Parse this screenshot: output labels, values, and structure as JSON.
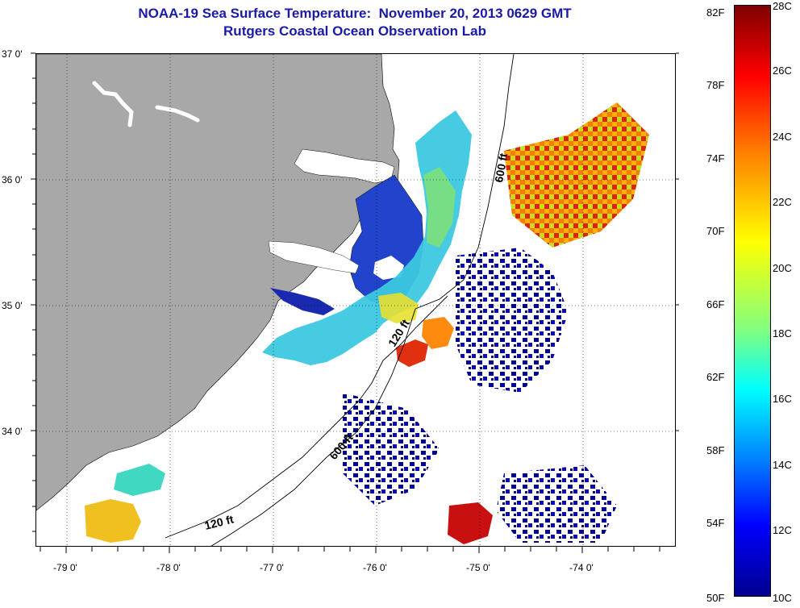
{
  "title": {
    "line1": "NOAA-19 Sea Surface Temperature:  November 20, 2013 0629 GMT",
    "line2": "Rutgers Coastal Ocean Observation Lab"
  },
  "map": {
    "lat_axis_labels": [
      "37 0'",
      "36 0'",
      "35 0'",
      "34 0'"
    ],
    "lon_axis_labels": [
      "-79 0'",
      "-78 0'",
      "-77 0'",
      "-76 0'",
      "-75 0'",
      "-74 0'"
    ],
    "contour_labels": {
      "c600_north": "600 ft",
      "c120_mid": "120 ft",
      "c600_south": "600 ft",
      "c120_south": "120 ft"
    },
    "colors": {
      "land": "#a8a8a8",
      "water": "#ffffff",
      "cold": "#00008f",
      "warm": "#a00000"
    }
  },
  "colorbar": {
    "fahrenheit_labels": [
      "82F",
      "78F",
      "74F",
      "70F",
      "66F",
      "62F",
      "58F",
      "54F",
      "50F"
    ],
    "celsius_labels": [
      "28C",
      "26C",
      "24C",
      "22C",
      "20C",
      "18C",
      "16C",
      "14C",
      "12C",
      "10C"
    ],
    "range_c": [
      10,
      28
    ],
    "colormap": "jet"
  }
}
